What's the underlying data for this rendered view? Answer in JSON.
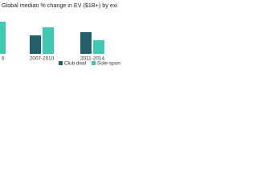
{
  "chart_data": {
    "type": "bar",
    "title": "Global median % change in EV ($1B+) by exi",
    "categories": [
      "6",
      "2007-2010",
      "2011-2014"
    ],
    "series": [
      {
        "name": "Club deal",
        "color": "#22606b",
        "values": [
          null,
          23,
          27
        ]
      },
      {
        "name": "Sole-sponsor buyout",
        "color": "#3fc8b3",
        "values": [
          40,
          33,
          17
        ]
      }
    ]
  }
}
